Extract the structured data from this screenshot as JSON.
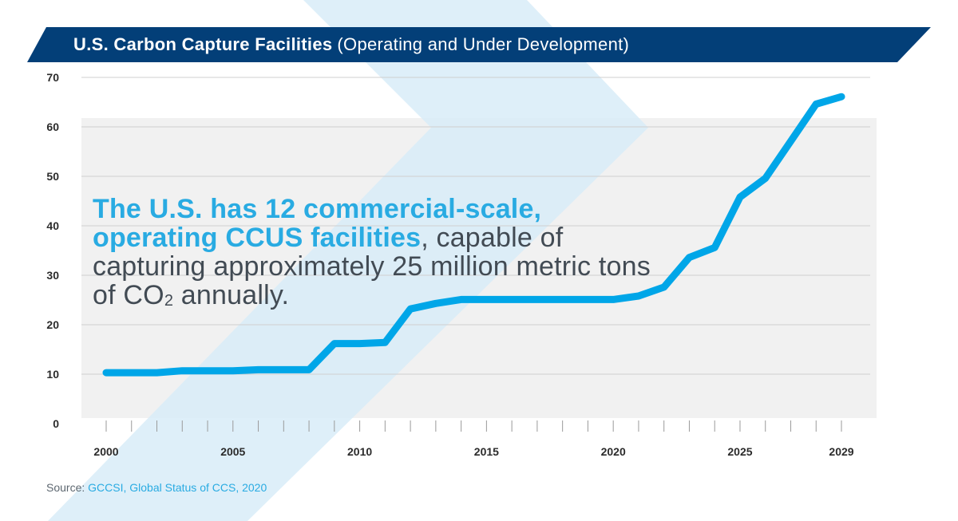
{
  "title": {
    "main": "U.S. Carbon Capture Facilities",
    "sub": "(Operating and Under Development)"
  },
  "annotation": {
    "highlight_line1": "The U.S. has 12 commercial-scale,",
    "highlight_line2": "operating CCUS facilities",
    "rest_a": ", capable of capturing approximately 25 million metric tons of CO",
    "subscript": "2",
    "rest_b": " annually."
  },
  "source": {
    "label": "Source:",
    "value": "GCCSI, Global Status of CCS, 2020"
  },
  "colors": {
    "title_bar": "#033f78",
    "line": "#00a6e8",
    "highlight_text": "#29abe2",
    "body_text": "#424b54",
    "plot_bg": "#f1f1f1",
    "chevron": "#d8ecf8"
  },
  "chart_data": {
    "type": "line",
    "x_tick_labels": [
      "2000",
      "2005",
      "2010",
      "2015",
      "2020",
      "2025",
      "2029"
    ],
    "y_tick_labels": [
      "0",
      "10",
      "20",
      "30",
      "40",
      "50",
      "60",
      "70"
    ],
    "xlim": [
      2000,
      2029
    ],
    "ylim": [
      0,
      70
    ],
    "grid": true,
    "series": [
      {
        "x": [
          2000,
          2001,
          2002,
          2003,
          2004,
          2005,
          2006,
          2007,
          2008,
          2009,
          2010,
          2011,
          2012,
          2013,
          2014,
          2015,
          2016,
          2017,
          2018,
          2019,
          2020,
          2021,
          2022,
          2023,
          2024,
          2025,
          2026,
          2027,
          2028,
          2029
        ],
        "values": [
          10.3,
          10.3,
          10.3,
          10.7,
          10.7,
          10.7,
          10.9,
          10.9,
          10.9,
          16.2,
          16.2,
          16.4,
          23.2,
          24.3,
          25.1,
          25.1,
          25.1,
          25.1,
          25.1,
          25.1,
          25.1,
          25.8,
          27.6,
          33.6,
          35.6,
          45.8,
          49.6,
          57.1,
          64.6,
          66.1
        ]
      }
    ]
  }
}
